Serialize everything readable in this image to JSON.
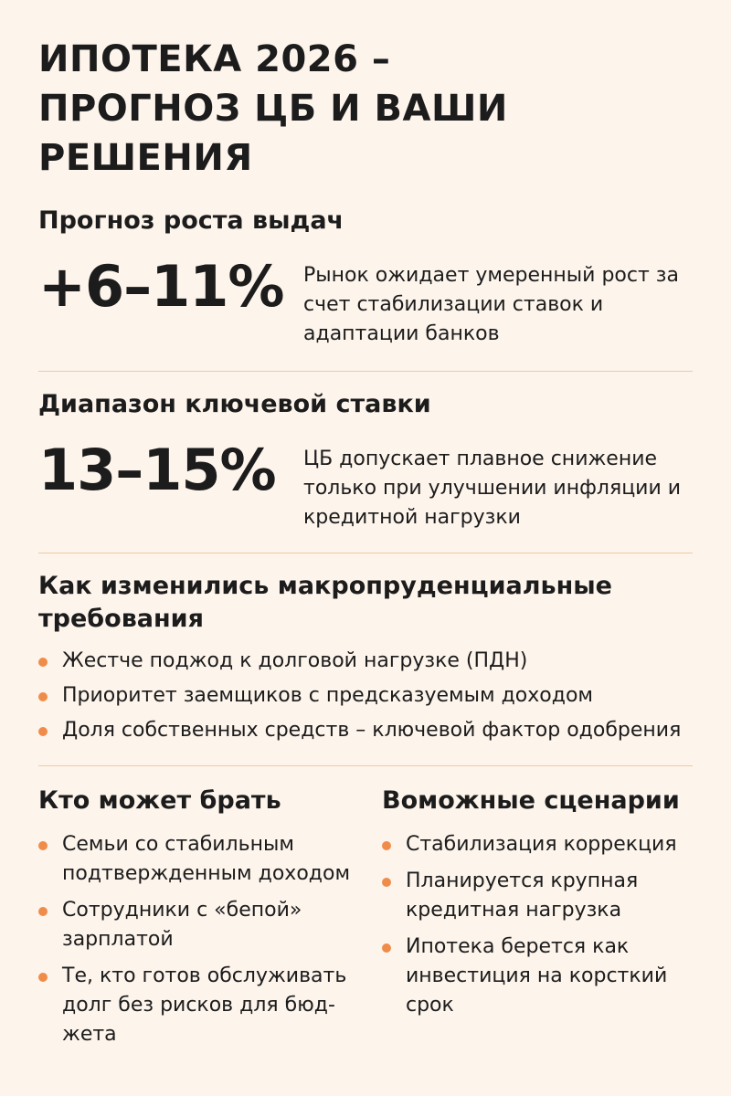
{
  "title": {
    "line1": "ИПОТЕКА 2026 –",
    "line2": "ПРОГНОЗ ЦБ И ВАШИ РЕШЕНИЯ"
  },
  "growth": {
    "heading": "Прогноз роста выдач",
    "value": "+6–11%",
    "description": "Рынок ожидает умеренный рост за счет стабилизации ставок и адаптации банков"
  },
  "key_rate": {
    "heading": "Диапазон ключевой ставки",
    "value": "13–15%",
    "description": "ЦБ допускает плавное снижение только при улучшении инфляции и кредитной нагрузки"
  },
  "requirements": {
    "heading": "Как изменились макропруденциальные требования",
    "items": [
      "Жестче поджод к долговой нагрузке (ПДН)",
      "Приоритет заемщиков с предсказуемым доходом",
      "Доля собственных средств – ключевой фактор одобрения"
    ]
  },
  "who_can_borrow": {
    "heading": "Кто может брать",
    "items": [
      "Семьи со стабильным подтвержденным доходом",
      "Сотрудники с «бепой» зарплатой",
      "Те, кто готов обслуживать долг без рисков для бюд-жета"
    ]
  },
  "scenarios": {
    "heading": "Воможные сценарии",
    "items": [
      "Стабилизация коррекция",
      "Планируется крупная кредитная нагрузка",
      "Ипотека берется как инвестиция на корсткий срок"
    ]
  },
  "colors": {
    "background": "#fdf4ec",
    "accent": "#f08c4a",
    "divider": "#efc9a6",
    "text": "#1c1c1c"
  },
  "icons": {
    "bullet": "orange-dot-icon"
  }
}
